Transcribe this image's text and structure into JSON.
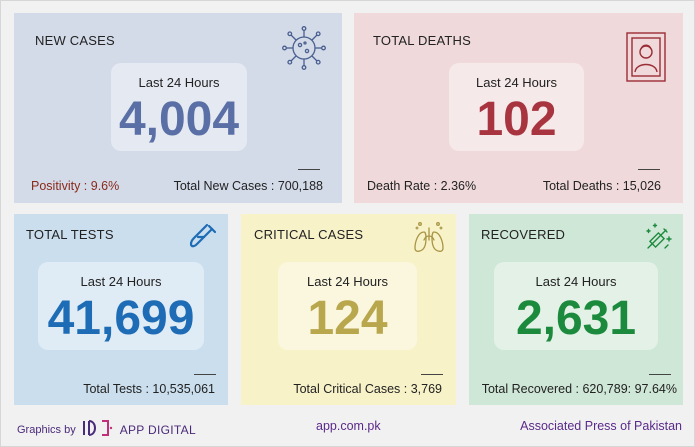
{
  "cards": {
    "new_cases": {
      "title": "NEW CASES",
      "period_label": "Last 24 Hours",
      "value": "4,004",
      "stat_left_label": "Positivity : ",
      "stat_left_value": "9.6%",
      "stat_right": "Total New Cases : 700,188",
      "icon": "virus-icon",
      "bg": "#d3dbe9",
      "value_color": "#5a6fa5"
    },
    "total_deaths": {
      "title": "TOTAL DEATHS",
      "period_label": "Last 24 Hours",
      "value": "102",
      "stat_left": "Death Rate : 2.36%",
      "stat_right": "Total Deaths : 15,026",
      "icon": "portrait-frame-icon",
      "bg": "#efd9db",
      "value_color": "#a8343f"
    },
    "total_tests": {
      "title": "TOTAL TESTS",
      "period_label": "Last 24 Hours",
      "value": "41,699",
      "stat": "Total Tests : 10,535,061",
      "icon": "test-tube-icon",
      "bg": "#cadeee",
      "value_color": "#1d6cb5"
    },
    "critical_cases": {
      "title": "CRITICAL CASES",
      "period_label": "Last 24 Hours",
      "value": "124",
      "stat": "Total Critical Cases : 3,769",
      "icon": "lungs-icon",
      "bg": "#f8f2c8",
      "value_color": "#b9a74e"
    },
    "recovered": {
      "title": "RECOVERED",
      "period_label": "Last 24 Hours",
      "value": "2,631",
      "stat": "Total Recovered : 620,789: 97.64%",
      "icon": "vaccine-sparkle-icon",
      "bg": "#cfe7d6",
      "value_color": "#1b8a3c"
    }
  },
  "footer": {
    "graphics_by": "Graphics by",
    "brand": "APP DIGITAL",
    "website": "app.com.pk",
    "agency": "Associated Press of Pakistan"
  }
}
